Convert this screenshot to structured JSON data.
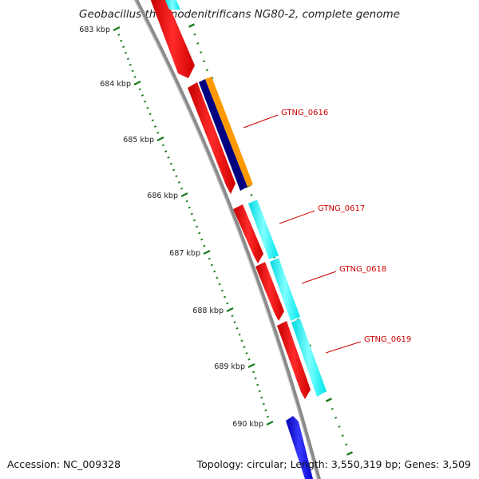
{
  "title": "Geobacillus thermodenitrificans NG80-2, complete genome",
  "footer": {
    "accession": "Accession: NC_009328",
    "summary": "Topology: circular; Length: 3,550,319 bp; Genes: 3,509"
  },
  "ruler": {
    "unit": "kbp",
    "ticks": [
      683,
      684,
      685,
      686,
      687,
      688,
      689,
      690
    ]
  },
  "genes": [
    {
      "id": "GTNG_0616",
      "label": "GTNG_0616"
    },
    {
      "id": "GTNG_0617",
      "label": "GTNG_0617"
    },
    {
      "id": "GTNG_0618",
      "label": "GTNG_0618"
    },
    {
      "id": "GTNG_0619",
      "label": "GTNG_0619"
    }
  ],
  "colors": {
    "cds": "#ff0000",
    "rna": "#00ffff",
    "cog_orange": "#ff9900",
    "cog_navy": "#000080",
    "cog_blue": "#0000ff",
    "backbone": "#8a8a8a",
    "tick": "#1a7a1a",
    "label": "#cc0000"
  }
}
